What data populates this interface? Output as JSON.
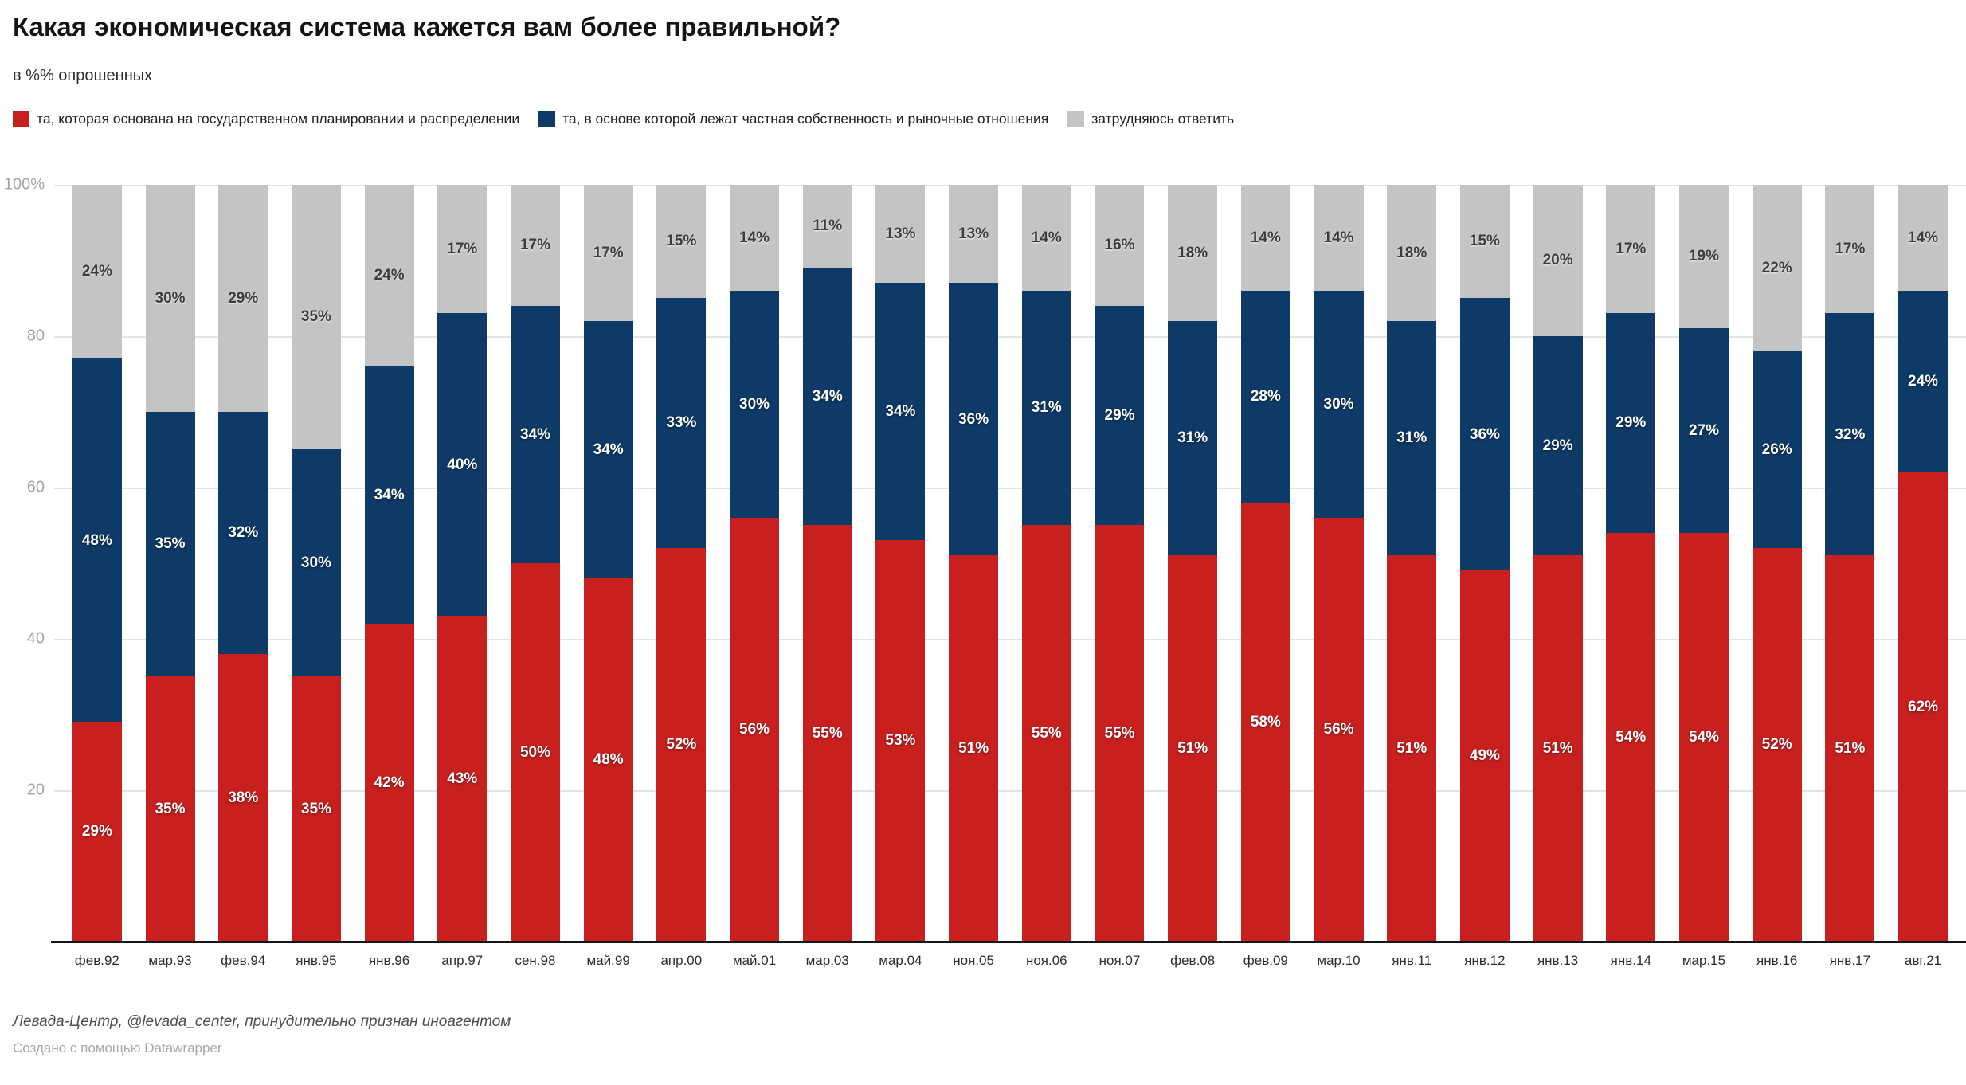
{
  "title": "Какая экономическая система кажется вам более правильной?",
  "subtitle": "в %% опрошенных",
  "legend": {
    "items": [
      {
        "label": "та, которая основана на государственном планировании и распределении",
        "color": "#c8201f"
      },
      {
        "label": "та, в основе которой лежат частная собственность и рыночные отношения",
        "color": "#0d3a67"
      },
      {
        "label": "затрудняюсь ответить",
        "color": "#c4c4c4"
      }
    ]
  },
  "chart_data": {
    "type": "bar",
    "stacked": true,
    "unit": "%",
    "title": "Какая экономическая система кажется вам более правильной?",
    "subtitle": "в %% опрошенных",
    "categories": [
      "фев.92",
      "мар.93",
      "фев.94",
      "янв.95",
      "янв.96",
      "апр.97",
      "сен.98",
      "май.99",
      "апр.00",
      "май.01",
      "мар.03",
      "мар.04",
      "ноя.05",
      "ноя.06",
      "ноя.07",
      "фев.08",
      "фев.09",
      "мар.10",
      "янв.11",
      "янв.12",
      "янв.13",
      "янв.14",
      "мар.15",
      "янв.16",
      "янв.17",
      "авг.21"
    ],
    "series": [
      {
        "name": "та, которая основана на государственном планировании и распределении",
        "color": "#c8201f",
        "label_color": "#ffffff",
        "values": [
          29,
          35,
          38,
          35,
          42,
          43,
          50,
          48,
          52,
          56,
          55,
          53,
          51,
          55,
          55,
          51,
          58,
          56,
          51,
          49,
          51,
          54,
          54,
          52,
          51,
          62
        ]
      },
      {
        "name": "та, в основе которой лежат частная собственность и рыночные отношения",
        "color": "#0d3a67",
        "label_color": "#ffffff",
        "values": [
          48,
          35,
          32,
          30,
          34,
          40,
          34,
          34,
          33,
          30,
          34,
          34,
          36,
          31,
          29,
          31,
          28,
          30,
          31,
          36,
          29,
          29,
          27,
          26,
          32,
          24
        ]
      },
      {
        "name": "затрудняюсь ответить",
        "color": "#c4c4c4",
        "label_color": "#3c3c3c",
        "values": [
          24,
          30,
          29,
          35,
          24,
          17,
          17,
          17,
          15,
          14,
          11,
          13,
          13,
          14,
          16,
          18,
          14,
          14,
          18,
          15,
          20,
          17,
          19,
          22,
          17,
          14
        ]
      }
    ],
    "ylim": [
      0,
      100
    ],
    "yticks": [
      "100%",
      "80",
      "60",
      "40",
      "20"
    ],
    "grid": true,
    "legend_position": "top",
    "bar_label_format": "{value}%",
    "colors": {
      "gridline": "#e4e4e4",
      "axis": "#161616",
      "y_tick_text": "#a4a4a4",
      "x_tick_text": "#2d2d2d"
    }
  },
  "footer": {
    "source": "Левада-Центр, @levada_center, принудительно признан иноагентом",
    "credit": "Создано с помощью Datawrapper"
  }
}
